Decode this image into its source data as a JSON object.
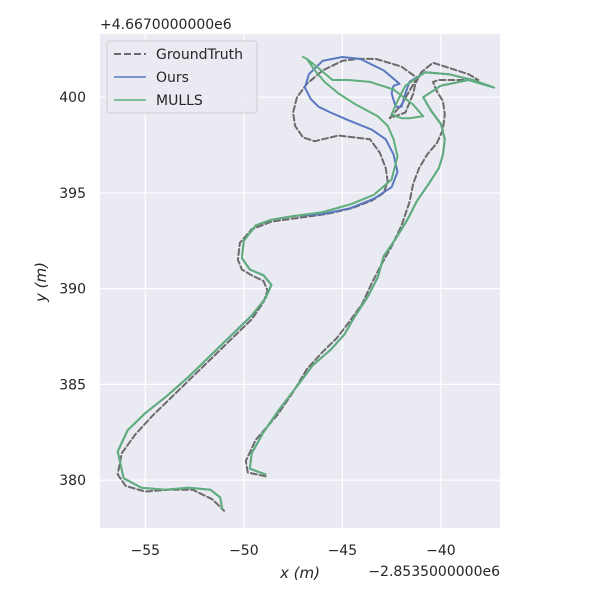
{
  "chart_data": {
    "type": "line",
    "title": "",
    "xlabel": "x (m)",
    "ylabel": "y (m)",
    "x_offset_label": "−2.8535000000e6",
    "y_offset_label": "+4.6670000000e6",
    "xlim": [
      -57.3,
      -37.0
    ],
    "ylim": [
      377.5,
      403.3
    ],
    "x_ticks": [
      -55,
      -50,
      -45,
      -40
    ],
    "x_tick_labels": [
      "−55",
      "−50",
      "−45",
      "−40"
    ],
    "y_ticks": [
      380,
      385,
      390,
      395,
      400
    ],
    "y_tick_labels": [
      "380",
      "385",
      "390",
      "395",
      "400"
    ],
    "grid": true,
    "legend_position": "upper-left",
    "colors": {
      "background": "#eaeaf2",
      "grid": "#ffffff",
      "groundtruth": "#6b6b6b",
      "ours": "#5a77c2",
      "mulls": "#5fae7c"
    },
    "series": [
      {
        "name": "GroundTruth",
        "style": "dashed",
        "x": [
          -48.9,
          -49.8,
          -49.9,
          -49.4,
          -48.3,
          -47.5,
          -46.8,
          -46.0,
          -45.3,
          -44.7,
          -44.0,
          -43.5,
          -43.0,
          -42.5,
          -42.0,
          -41.6,
          -41.4,
          -41.1,
          -40.7,
          -40.2,
          -39.9,
          -39.8,
          -39.9,
          -40.2,
          -40.4,
          -40.1,
          -39.5,
          -38.8,
          -38.1,
          -38.6,
          -40.4,
          -41.0,
          -41.3,
          -41.4,
          -41.8,
          -42.6,
          -42.0,
          -41.5,
          -41.2,
          -42.0,
          -43.3,
          -44.2,
          -45.0,
          -46.0,
          -46.8,
          -47.3,
          -47.5,
          -47.4,
          -47.0,
          -46.4,
          -45.2,
          -43.6,
          -43.1,
          -42.8,
          -42.7,
          -42.9,
          -43.5,
          -44.5,
          -45.8,
          -47.2,
          -48.6,
          -49.6,
          -50.2,
          -50.3,
          -50.1,
          -49.6,
          -49.0,
          -48.8,
          -49.0,
          -49.6,
          -50.6,
          -51.6,
          -52.6,
          -53.6,
          -54.6,
          -55.5,
          -56.2,
          -56.4,
          -56.0,
          -55.0,
          -53.8,
          -52.6,
          -51.6,
          -51.2,
          -51.0
        ],
        "y": [
          380.2,
          380.4,
          381.0,
          382.1,
          383.4,
          384.6,
          385.8,
          386.7,
          387.4,
          388.2,
          389.2,
          390.3,
          391.3,
          392.2,
          393.3,
          394.5,
          395.5,
          396.3,
          397.0,
          397.6,
          398.3,
          399.1,
          399.8,
          400.3,
          400.8,
          400.9,
          400.9,
          400.9,
          400.9,
          401.2,
          401.8,
          401.3,
          400.7,
          400.2,
          399.2,
          398.9,
          399.6,
          400.5,
          401.0,
          401.6,
          402.0,
          402.0,
          401.9,
          401.4,
          400.7,
          400.0,
          399.2,
          398.5,
          397.9,
          397.7,
          398.0,
          397.8,
          397.1,
          396.3,
          395.6,
          395.0,
          394.6,
          394.2,
          393.9,
          393.7,
          393.5,
          393.1,
          392.4,
          391.5,
          391.0,
          390.7,
          390.4,
          389.9,
          389.3,
          388.4,
          387.4,
          386.4,
          385.4,
          384.4,
          383.4,
          382.4,
          381.4,
          380.3,
          379.7,
          379.4,
          379.5,
          379.5,
          379.0,
          378.6,
          378.4
        ]
      },
      {
        "name": "Ours",
        "style": "solid",
        "x": [
          -48.9,
          -49.7,
          -49.6,
          -49.0,
          -48.2,
          -47.3,
          -46.5,
          -45.6,
          -44.9,
          -44.4,
          -43.7,
          -43.2,
          -42.9,
          -42.3,
          -41.7,
          -41.2,
          -40.6,
          -40.1,
          -39.9,
          -39.8,
          -40.0,
          -40.5,
          -40.9,
          -40.0,
          -38.6,
          -37.3,
          -38.4,
          -39.6,
          -40.8,
          -41.6,
          -41.8,
          -42.0,
          -42.3,
          -42.5,
          -42.4,
          -42.1,
          -42.9,
          -44.1,
          -45.0,
          -46.0,
          -46.7,
          -46.9,
          -46.6,
          -46.2,
          -45.6,
          -44.7,
          -43.5,
          -42.8,
          -42.4,
          -42.2,
          -42.5,
          -43.4,
          -44.6,
          -46.0,
          -47.4,
          -48.6,
          -49.4,
          -50.0,
          -50.1,
          -49.7,
          -49.0,
          -48.6,
          -48.9,
          -49.6,
          -50.6,
          -51.7,
          -52.8,
          -53.9,
          -55.0,
          -55.9,
          -56.4,
          -56.1,
          -55.2,
          -54.0,
          -52.8,
          -51.7,
          -51.2,
          -51.1
        ],
        "y": [
          380.3,
          380.6,
          381.4,
          382.5,
          383.7,
          384.9,
          386.0,
          386.8,
          387.6,
          388.5,
          389.6,
          390.6,
          391.7,
          392.6,
          393.6,
          394.6,
          395.5,
          396.3,
          397.0,
          397.8,
          398.6,
          399.3,
          400.0,
          400.6,
          400.9,
          400.5,
          400.9,
          401.2,
          401.3,
          400.8,
          400.2,
          399.5,
          399.5,
          400.2,
          400.6,
          400.7,
          401.4,
          402.0,
          402.1,
          401.9,
          401.2,
          400.5,
          399.9,
          399.5,
          399.2,
          398.8,
          398.3,
          397.8,
          397.0,
          396.1,
          395.3,
          394.7,
          394.2,
          393.9,
          393.8,
          393.6,
          393.3,
          392.5,
          391.6,
          391.0,
          390.7,
          390.2,
          389.5,
          388.6,
          387.6,
          386.5,
          385.4,
          384.4,
          383.5,
          382.6,
          381.5,
          380.1,
          379.6,
          379.5,
          379.6,
          379.5,
          379.1,
          378.5
        ]
      },
      {
        "name": "MULLS",
        "style": "solid",
        "x": [
          -48.9,
          -49.7,
          -49.6,
          -49.0,
          -48.2,
          -47.3,
          -46.5,
          -45.6,
          -44.9,
          -44.4,
          -43.7,
          -43.2,
          -42.9,
          -42.3,
          -41.7,
          -41.2,
          -40.6,
          -40.1,
          -39.9,
          -39.8,
          -40.0,
          -40.5,
          -40.9,
          -40.0,
          -38.6,
          -37.3,
          -38.4,
          -39.6,
          -40.8,
          -41.8,
          -42.2,
          -42.5,
          -42.0,
          -41.6,
          -40.9,
          -41.4,
          -42.4,
          -43.6,
          -44.7,
          -45.5,
          -46.3,
          -46.8,
          -47.0,
          -46.8,
          -46.4,
          -45.9,
          -45.2,
          -44.3,
          -43.2,
          -42.7,
          -42.4,
          -42.2,
          -42.5,
          -43.4,
          -44.6,
          -46.0,
          -47.4,
          -48.6,
          -49.4,
          -50.0,
          -50.1,
          -49.7,
          -49.0,
          -48.6,
          -48.9,
          -49.6,
          -50.6,
          -51.7,
          -52.8,
          -53.9,
          -55.0,
          -55.9,
          -56.4,
          -56.1,
          -55.2,
          -54.0,
          -52.8,
          -51.7,
          -51.2,
          -51.1
        ],
        "y": [
          380.3,
          380.6,
          381.4,
          382.5,
          383.7,
          384.9,
          386.0,
          386.8,
          387.6,
          388.5,
          389.6,
          390.6,
          391.7,
          392.6,
          393.6,
          394.6,
          395.5,
          396.3,
          397.0,
          397.8,
          398.6,
          399.3,
          400.0,
          400.6,
          400.9,
          400.5,
          400.9,
          401.2,
          401.3,
          400.6,
          399.8,
          399.1,
          398.9,
          398.9,
          399.0,
          399.6,
          400.4,
          400.8,
          400.9,
          400.9,
          401.6,
          402.0,
          402.1,
          402.0,
          401.4,
          400.8,
          400.2,
          399.6,
          399.0,
          398.5,
          397.8,
          396.9,
          395.7,
          394.9,
          394.4,
          394.0,
          393.8,
          393.6,
          393.3,
          392.5,
          391.6,
          391.0,
          390.7,
          390.2,
          389.5,
          388.6,
          387.6,
          386.5,
          385.4,
          384.4,
          383.5,
          382.6,
          381.5,
          380.1,
          379.6,
          379.5,
          379.6,
          379.5,
          379.1,
          378.5
        ]
      }
    ]
  }
}
